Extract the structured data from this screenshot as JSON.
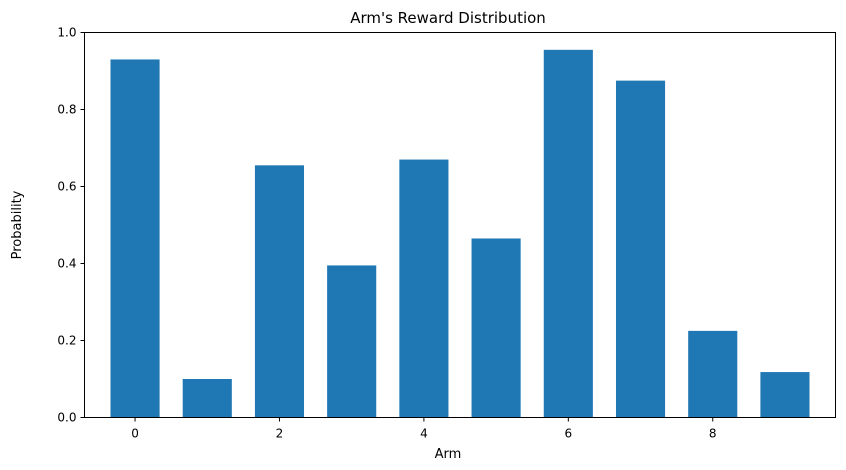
{
  "chart_data": {
    "type": "bar",
    "title": "Arm's Reward Distribution",
    "xlabel": "Arm",
    "ylabel": "Probability",
    "categories": [
      0,
      1,
      2,
      3,
      4,
      5,
      6,
      7,
      8,
      9
    ],
    "values": [
      0.93,
      0.1,
      0.655,
      0.395,
      0.67,
      0.465,
      0.955,
      0.875,
      0.225,
      0.118
    ],
    "xlim": [
      -0.7,
      9.7
    ],
    "ylim": [
      0,
      1.0
    ],
    "xticks": [
      0,
      2,
      4,
      6,
      8
    ],
    "xtick_labels": [
      "0",
      "2",
      "4",
      "6",
      "8"
    ],
    "yticks": [
      0,
      0.2,
      0.4,
      0.6,
      0.8,
      1.0
    ],
    "ytick_labels": [
      "0.0",
      "0.2",
      "0.4",
      "0.6",
      "0.8",
      "1.0"
    ],
    "bar_color": "#1f77b4",
    "grid": false,
    "legend": "none"
  }
}
